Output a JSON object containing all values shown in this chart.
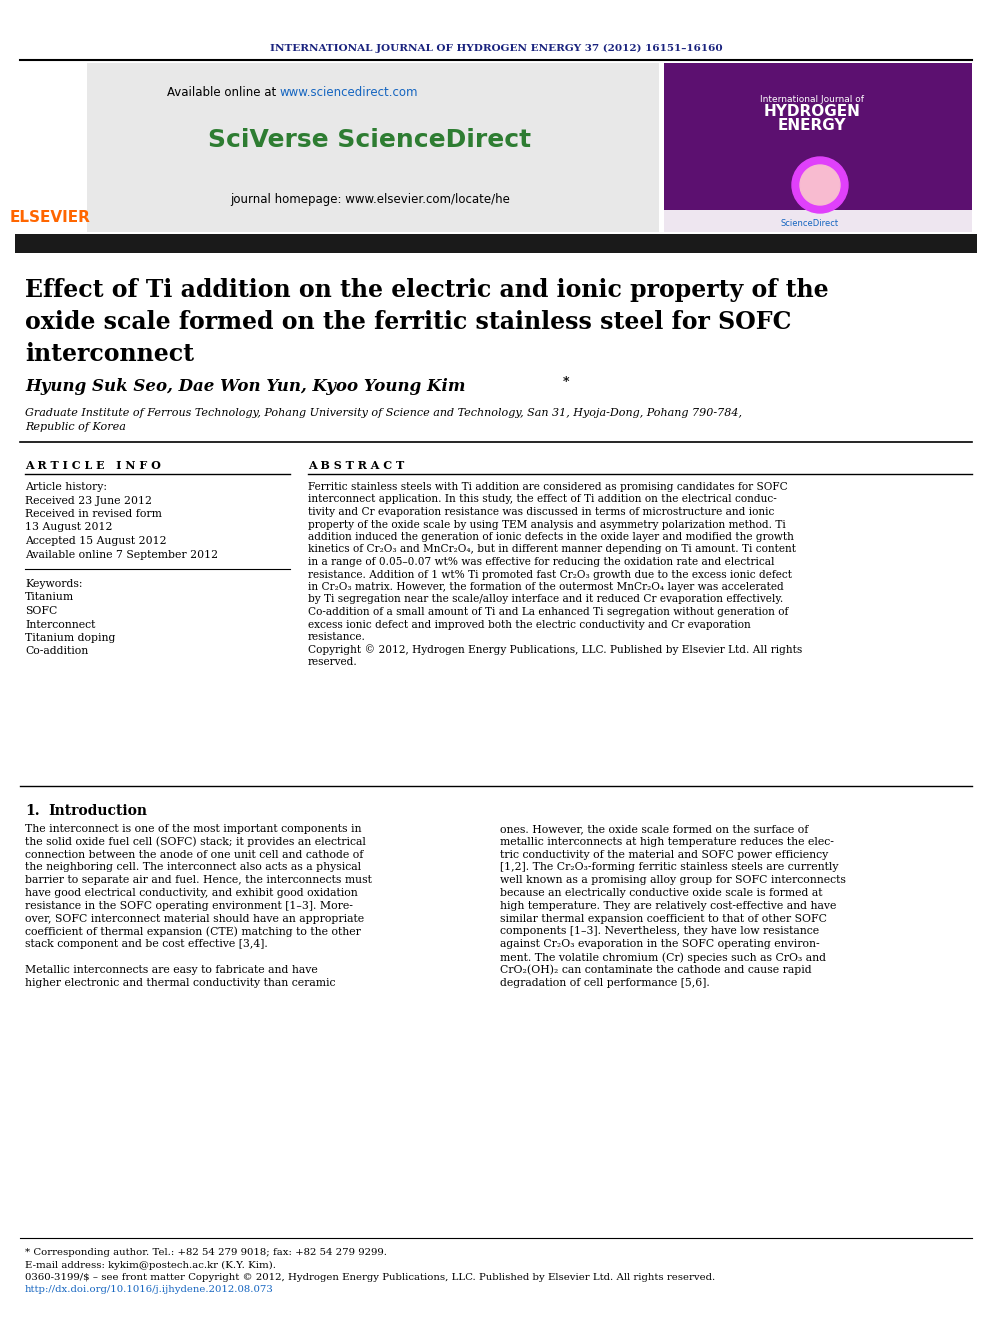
{
  "journal_header": "INTERNATIONAL JOURNAL OF HYDROGEN ENERGY 37 (2012) 16151–16160",
  "journal_header_color": "#1a237e",
  "sciverse_text": "SciVerse ScienceDirect",
  "sciverse_color": "#2e7d32",
  "journal_homepage": "journal homepage: www.elsevier.com/locate/he",
  "elsevier_color": "#ff6600",
  "elsevier_text": "ELSEVIER",
  "affiliation1": "Graduate Institute of Ferrous Technology, Pohang University of Science and Technology, San 31, Hyoja-Dong, Pohang 790-784,",
  "affiliation2": "Republic of Korea",
  "article_info_header": "A R T I C L E   I N F O",
  "abstract_header": "A B S T R A C T",
  "article_history_label": "Article history:",
  "received1": "Received 23 June 2012",
  "revised_label": "Received in revised form",
  "revised_date": "13 August 2012",
  "accepted": "Accepted 15 August 2012",
  "available_online": "Available online 7 September 2012",
  "keywords_label": "Keywords:",
  "keywords": [
    "Titanium",
    "SOFC",
    "Interconnect",
    "Titanium doping",
    "Co-addition"
  ],
  "abstract_lines": [
    "Ferritic stainless steels with Ti addition are considered as promising candidates for SOFC",
    "interconnect application. In this study, the effect of Ti addition on the electrical conduc-",
    "tivity and Cr evaporation resistance was discussed in terms of microstructure and ionic",
    "property of the oxide scale by using TEM analysis and asymmetry polarization method. Ti",
    "addition induced the generation of ionic defects in the oxide layer and modified the growth",
    "kinetics of Cr₂O₃ and MnCr₂O₄, but in different manner depending on Ti amount. Ti content",
    "in a range of 0.05–0.07 wt% was effective for reducing the oxidation rate and electrical",
    "resistance. Addition of 1 wt% Ti promoted fast Cr₂O₃ growth due to the excess ionic defect",
    "in Cr₂O₃ matrix. However, the formation of the outermost MnCr₂O₄ layer was accelerated",
    "by Ti segregation near the scale/alloy interface and it reduced Cr evaporation effectively.",
    "Co-addition of a small amount of Ti and La enhanced Ti segregation without generation of",
    "excess ionic defect and improved both the electric conductivity and Cr evaporation",
    "resistance.",
    "Copyright © 2012, Hydrogen Energy Publications, LLC. Published by Elsevier Ltd. All rights",
    "reserved."
  ],
  "intro_col1_lines": [
    "The interconnect is one of the most important components in",
    "the solid oxide fuel cell (SOFC) stack; it provides an electrical",
    "connection between the anode of one unit cell and cathode of",
    "the neighboring cell. The interconnect also acts as a physical",
    "barrier to separate air and fuel. Hence, the interconnects must",
    "have good electrical conductivity, and exhibit good oxidation",
    "resistance in the SOFC operating environment [1–3]. More-",
    "over, SOFC interconnect material should have an appropriate",
    "coefficient of thermal expansion (CTE) matching to the other",
    "stack component and be cost effective [3,4].",
    "",
    "Metallic interconnects are easy to fabricate and have",
    "higher electronic and thermal conductivity than ceramic"
  ],
  "intro_col2_lines": [
    "ones. However, the oxide scale formed on the surface of",
    "metallic interconnects at high temperature reduces the elec-",
    "tric conductivity of the material and SOFC power efficiency",
    "[1,2]. The Cr₂O₃-forming ferritic stainless steels are currently",
    "well known as a promising alloy group for SOFC interconnects",
    "because an electrically conductive oxide scale is formed at",
    "high temperature. They are relatively cost-effective and have",
    "similar thermal expansion coefficient to that of other SOFC",
    "components [1–3]. Nevertheless, they have low resistance",
    "against Cr₂O₃ evaporation in the SOFC operating environ-",
    "ment. The volatile chromium (Cr) species such as CrO₃ and",
    "CrO₂(OH)₂ can contaminate the cathode and cause rapid",
    "degradation of cell performance [5,6]."
  ],
  "footnote_star": "* Corresponding author. Tel.: +82 54 279 9018; fax: +82 54 279 9299.",
  "footnote_email": "E-mail address: kykim@postech.ac.kr (K.Y. Kim).",
  "footnote_issn": "0360-3199/$ – see front matter Copyright © 2012, Hydrogen Energy Publications, LLC. Published by Elsevier Ltd. All rights reserved.",
  "footnote_doi": "http://dx.doi.org/10.1016/j.ijhydene.2012.08.073",
  "doi_color": "#1565c0",
  "url_color": "#1565c0",
  "bg_header_color": "#e8e8e8",
  "black_bar_color": "#1a1a1a",
  "cover_color": "#5c1070"
}
